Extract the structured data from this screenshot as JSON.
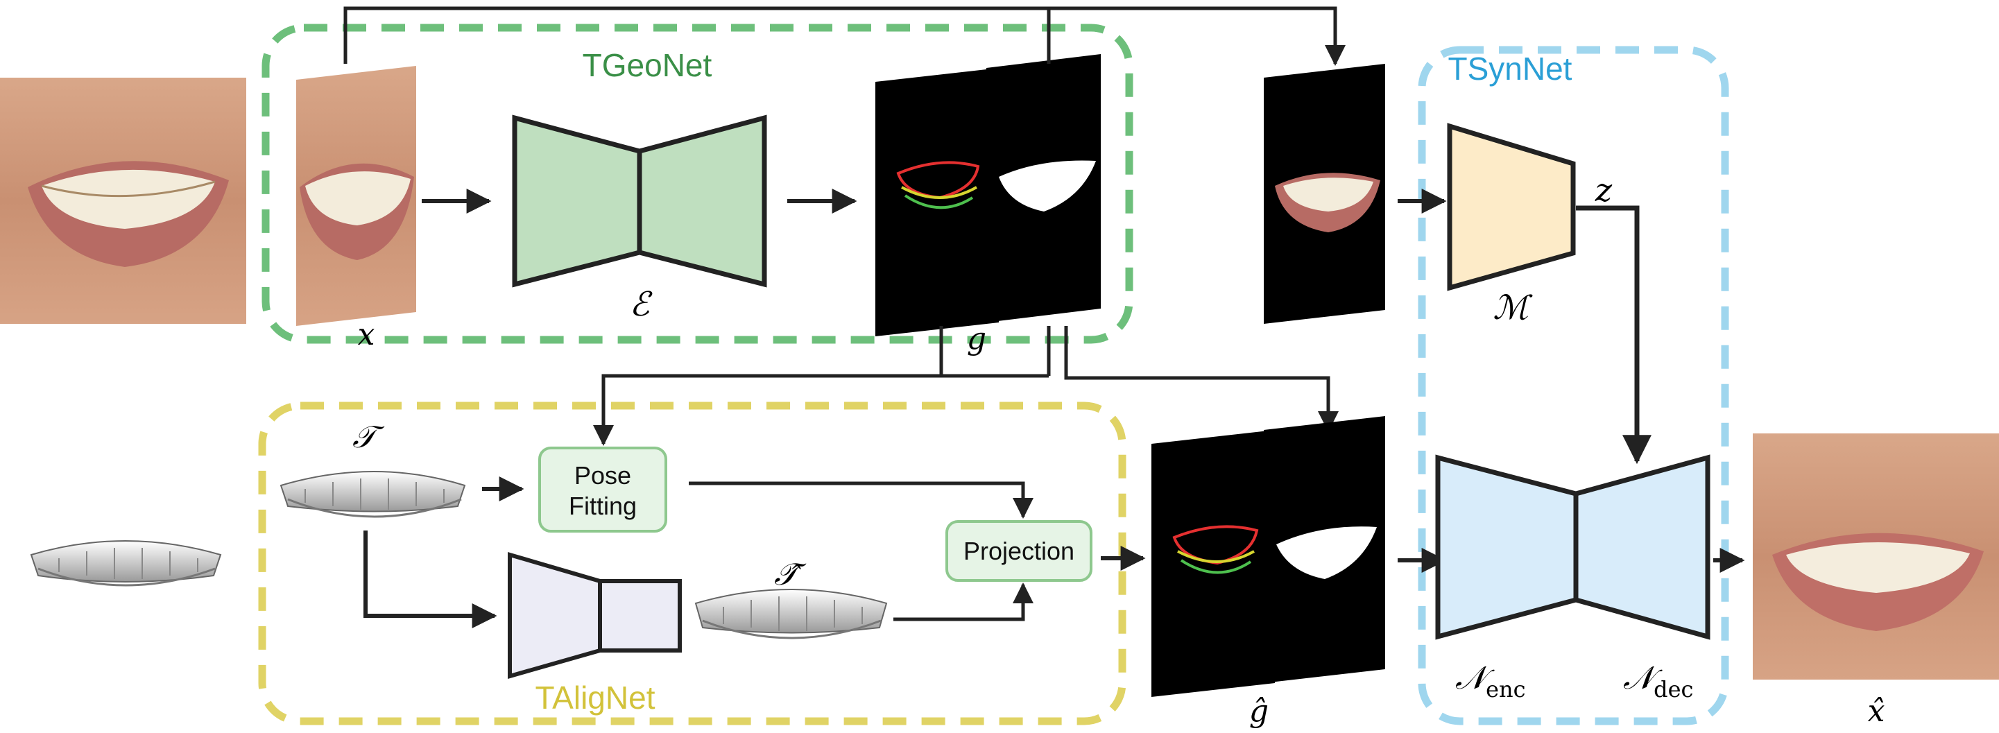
{
  "modules": {
    "tgeonet": {
      "label": "TGeoNet",
      "color": "#3a8f47",
      "border": "#6dbf7b"
    },
    "tsynnet": {
      "label": "TSynNet",
      "color": "#2a9fd6",
      "border": "#9fd6ee"
    },
    "talignet": {
      "label": "TAligNet",
      "color": "#d2c23a",
      "border": "#e0d365"
    }
  },
  "symbols": {
    "x": "x",
    "encoder": "ℰ",
    "g": "g",
    "z": "z",
    "mapper": "ℳ",
    "tau": "𝒯",
    "tau_hat": "𝒯̂",
    "g_hat": "ĝ",
    "x_hat": "x̂",
    "n_enc": "𝒩",
    "n_enc_sub": "enc",
    "n_dec": "𝒩",
    "n_dec_sub": "dec"
  },
  "boxes": {
    "pose_fitting_line1": "Pose",
    "pose_fitting_line2": "Fitting",
    "projection": "Projection"
  },
  "colors": {
    "encoder_fill": "#bfdfbf",
    "mapper_fill": "#fdebc8",
    "synth_fill": "#d8ecfa",
    "align_fill": "#ececf6",
    "small_box_fill": "#e6f4e6",
    "small_box_border": "#8ec88e",
    "panel_black": "#000000",
    "arrow": "#222222"
  }
}
